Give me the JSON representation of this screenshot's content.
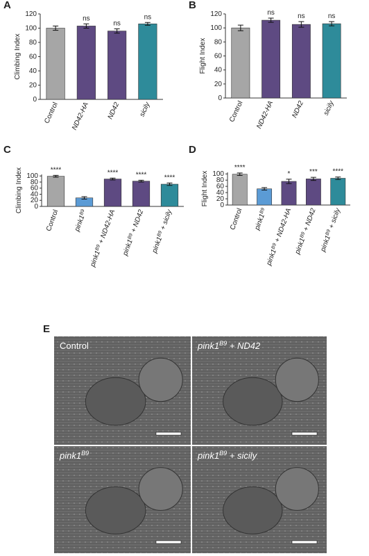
{
  "chart_data": [
    {
      "type": "bar",
      "panel_label": "A",
      "ylabel": "Climbing Index",
      "categories": [
        "Control",
        "ND42-HA",
        "ND42",
        "sicily"
      ],
      "values": [
        100,
        103,
        96,
        106
      ],
      "errors": [
        3,
        3,
        3,
        2
      ],
      "colors": [
        "#a6a6a6",
        "#5e4a82",
        "#5e4a82",
        "#2e8b9a"
      ],
      "annotations": [
        null,
        "ns",
        "ns",
        "ns"
      ],
      "ylim": [
        0,
        120
      ],
      "yticks": [
        0,
        20,
        40,
        60,
        80,
        100,
        120
      ]
    },
    {
      "type": "bar",
      "panel_label": "B",
      "ylabel": "Flight Index",
      "categories": [
        "Control",
        "ND42-HA",
        "ND42",
        "sicily"
      ],
      "values": [
        100,
        111,
        105,
        106
      ],
      "errors": [
        4,
        3,
        4,
        3
      ],
      "colors": [
        "#a6a6a6",
        "#5e4a82",
        "#5e4a82",
        "#2e8b9a"
      ],
      "annotations": [
        null,
        "ns",
        "ns",
        "ns"
      ],
      "ylim": [
        0,
        120
      ],
      "yticks": [
        0,
        20,
        40,
        60,
        80,
        100,
        120
      ]
    },
    {
      "type": "bar",
      "panel_label": "C",
      "ylabel": "Climbing Index",
      "categories": [
        "Control",
        "pink1B9",
        "pink1B9 + ND42-HA",
        "pink1B9 + ND42",
        "pink1B9 + sicily"
      ],
      "values": [
        99,
        28,
        90,
        83,
        73
      ],
      "errors": [
        3,
        4,
        3,
        3,
        4
      ],
      "colors": [
        "#a6a6a6",
        "#5b9bd5",
        "#5e4a82",
        "#5e4a82",
        "#2e8b9a"
      ],
      "annotations": [
        "****",
        null,
        "****",
        "****",
        "****"
      ],
      "ylim": [
        0,
        105
      ],
      "yticks": [
        0,
        20,
        40,
        60,
        80,
        100
      ]
    },
    {
      "type": "bar",
      "panel_label": "D",
      "ylabel": "Flight Index",
      "categories": [
        "Control",
        "pink1B9",
        "pink1B9 + ND42-HA",
        "pink1B9 + ND42",
        "pink1B9 + sicily"
      ],
      "values": [
        99,
        52,
        76,
        84,
        86
      ],
      "errors": [
        4,
        4,
        7,
        5,
        4
      ],
      "colors": [
        "#a6a6a6",
        "#5b9bd5",
        "#5e4a82",
        "#5e4a82",
        "#2e8b9a"
      ],
      "annotations": [
        "****",
        null,
        "*",
        "***",
        "****"
      ],
      "ylim": [
        0,
        105
      ],
      "yticks": [
        0,
        20,
        40,
        60,
        80,
        100
      ]
    }
  ],
  "panel_e": {
    "panel_label": "E",
    "images": [
      "Control",
      "pink1B9 + ND42",
      "pink1B9",
      "pink1B9 + sicily"
    ]
  }
}
